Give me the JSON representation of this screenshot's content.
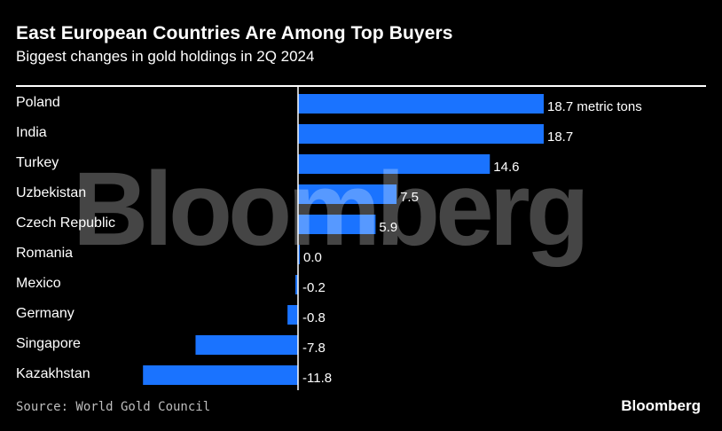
{
  "header": {
    "title": "East European Countries Are Among Top Buyers",
    "subtitle": "Biggest changes in gold holdings in 2Q 2024"
  },
  "footer": {
    "source": "Source: World Gold Council",
    "brand": "Bloomberg"
  },
  "watermark": "Bloomberg",
  "colors": {
    "bar": "#1a73ff",
    "background": "#000000",
    "text": "#ffffff"
  },
  "chart_data": {
    "type": "bar",
    "orientation": "horizontal",
    "categories": [
      "Poland",
      "India",
      "Turkey",
      "Uzbekistan",
      "Czech Republic",
      "Romania",
      "Mexico",
      "Germany",
      "Singapore",
      "Kazakhstan"
    ],
    "values": [
      18.7,
      18.7,
      14.6,
      7.5,
      5.9,
      0.0,
      -0.2,
      -0.8,
      -7.8,
      -11.8
    ],
    "value_labels": [
      "18.7 metric tons",
      "18.7",
      "14.6",
      "7.5",
      "5.9",
      "0.0",
      "-0.2",
      "-0.8",
      "-7.8",
      "-11.8"
    ],
    "title": "East European Countries Are Among Top Buyers",
    "subtitle": "Biggest changes in gold holdings in 2Q 2024",
    "xlim": [
      -12,
      19
    ],
    "grid": false,
    "legend": "none"
  }
}
